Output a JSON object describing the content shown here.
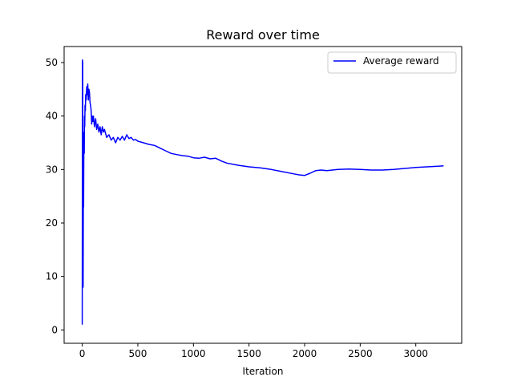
{
  "chart_data": {
    "type": "line",
    "title": "Reward over time",
    "xlabel": "Iteration",
    "ylabel": "",
    "xlim": [
      -163,
      3413
    ],
    "ylim": [
      -2.5,
      53.0
    ],
    "x_ticks": [
      0,
      500,
      1000,
      1500,
      2000,
      2500,
      3000
    ],
    "y_ticks": [
      0,
      10,
      20,
      30,
      40,
      50
    ],
    "grid": false,
    "legend": {
      "position": "top-right",
      "entries": [
        "Average reward"
      ]
    },
    "colors": {
      "series": "#0000ff",
      "axes": "#000000",
      "background": "#ffffff"
    },
    "series": [
      {
        "name": "Average reward",
        "x": [
          0,
          2,
          4,
          6,
          8,
          10,
          12,
          14,
          16,
          18,
          20,
          22,
          25,
          28,
          31,
          35,
          40,
          45,
          50,
          55,
          60,
          65,
          70,
          75,
          80,
          85,
          90,
          95,
          100,
          110,
          120,
          130,
          140,
          150,
          160,
          170,
          180,
          190,
          200,
          220,
          240,
          260,
          280,
          300,
          320,
          340,
          360,
          380,
          400,
          420,
          440,
          460,
          480,
          500,
          550,
          600,
          650,
          700,
          750,
          800,
          850,
          900,
          950,
          1000,
          1050,
          1100,
          1150,
          1200,
          1250,
          1300,
          1400,
          1500,
          1600,
          1700,
          1800,
          1900,
          1950,
          2000,
          2050,
          2100,
          2150,
          2200,
          2300,
          2400,
          2500,
          2600,
          2700,
          2800,
          2900,
          3000,
          3100,
          3200,
          3250
        ],
        "y": [
          1.0,
          50.5,
          50.0,
          20.0,
          8.0,
          27.0,
          23.0,
          35.0,
          37.0,
          33.0,
          40.0,
          38.0,
          42.0,
          41.0,
          44.0,
          43.0,
          45.5,
          44.0,
          46.0,
          43.0,
          45.0,
          44.5,
          42.5,
          42.0,
          41.0,
          38.5,
          40.0,
          39.0,
          40.0,
          38.0,
          39.5,
          37.5,
          38.5,
          37.0,
          38.0,
          36.5,
          38.0,
          37.0,
          37.5,
          36.0,
          36.5,
          35.5,
          36.0,
          35.0,
          36.0,
          35.5,
          36.2,
          35.5,
          36.5,
          35.8,
          36.0,
          35.5,
          35.6,
          35.3,
          35.0,
          34.7,
          34.5,
          34.0,
          33.5,
          33.0,
          32.8,
          32.6,
          32.5,
          32.2,
          32.1,
          32.3,
          32.0,
          32.1,
          31.6,
          31.2,
          30.8,
          30.5,
          30.3,
          30.0,
          29.6,
          29.2,
          29.0,
          28.9,
          29.3,
          29.8,
          29.9,
          29.8,
          30.0,
          30.1,
          30.0,
          29.9,
          29.9,
          30.0,
          30.2,
          30.4,
          30.5,
          30.6,
          30.7
        ]
      }
    ]
  }
}
